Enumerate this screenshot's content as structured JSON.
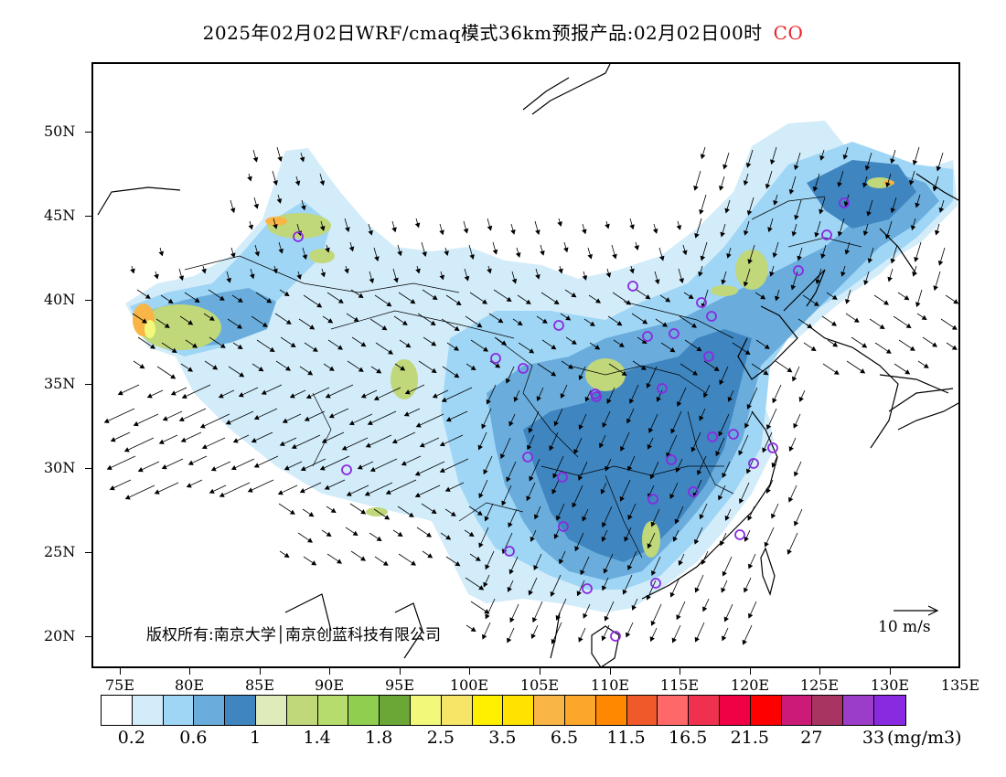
{
  "title": {
    "text": "2025年02月02日WRF/cmaq模式36km预报产品:02月02日00时",
    "species": "CO",
    "species_color": "#e8252b"
  },
  "map": {
    "lon_range": [
      73,
      135
    ],
    "lat_range": [
      18,
      54
    ],
    "lat_labels": [
      "50N",
      "45N",
      "40N",
      "35N",
      "30N",
      "25N",
      "20N"
    ],
    "lat_values": [
      50,
      45,
      40,
      35,
      30,
      25,
      20
    ],
    "lon_labels": [
      "75E",
      "80E",
      "85E",
      "90E",
      "95E",
      "100E",
      "105E",
      "110E",
      "115E",
      "120E",
      "125E",
      "130E",
      "135E"
    ],
    "lon_values": [
      75,
      80,
      85,
      90,
      95,
      100,
      105,
      110,
      115,
      120,
      125,
      130,
      135
    ],
    "base_field_color": "#4a90c8"
  },
  "copyright": "版权所有:南京大学│南京创蓝科技有限公司",
  "wind_scale": {
    "label": "10 m/s"
  },
  "colorbar": {
    "colors": [
      "#ffffff",
      "#d2ecfa",
      "#9fd6f5",
      "#6aaddc",
      "#3f86c0",
      "#dfebba",
      "#c0d77a",
      "#b5dc6c",
      "#8fce4e",
      "#6aa736",
      "#f2f97a",
      "#f6e566",
      "#fff000",
      "#ffe200",
      "#f9b545",
      "#fca62a",
      "#ff8800",
      "#f05a2b",
      "#ff6868",
      "#f0304f",
      "#f00044",
      "#ff0000",
      "#cc1a78",
      "#a83461",
      "#9b3dc9",
      "#8a2ae0"
    ],
    "labels": [
      "0.2",
      "0.6",
      "1",
      "1.4",
      "1.8",
      "2.5",
      "3.5",
      "6.5",
      "11.5",
      "16.5",
      "21.5",
      "27",
      "33"
    ],
    "unit": "(mg/m3)"
  }
}
